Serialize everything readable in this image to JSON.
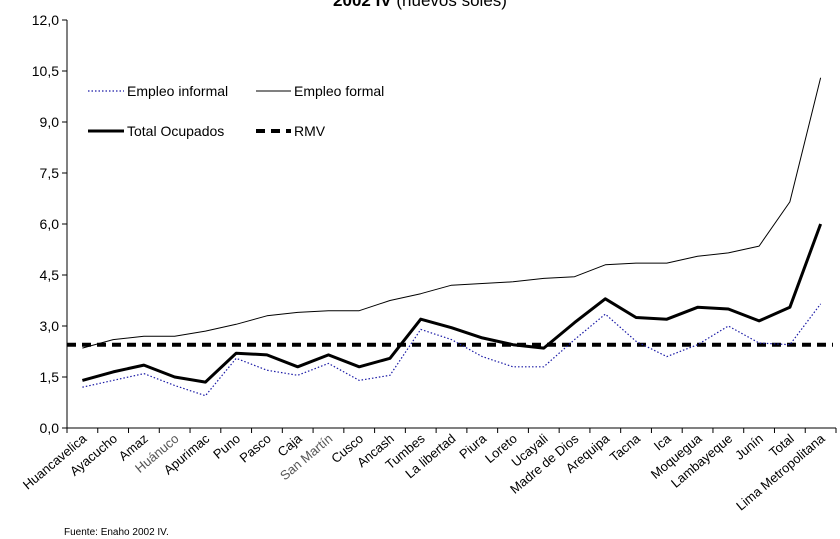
{
  "chart_data": {
    "type": "line",
    "title_bold": "2002 IV",
    "title_rest": "(nuevos soles)",
    "ylim": [
      0,
      12
    ],
    "yticks": [
      "0,0",
      "1,5",
      "3,0",
      "4,5",
      "6,0",
      "7,5",
      "9,0",
      "10,5",
      "12,0"
    ],
    "categories": [
      "Huancavelica",
      "Ayacucho",
      "Amazonas",
      "Huánuco",
      "Apurimac",
      "Puno",
      "Pasco",
      "Cajamarca",
      "San Martín",
      "Cusco",
      "Ancash",
      "Tumbes",
      "La libertad",
      "Piura",
      "Loreto",
      "Ucayali",
      "Madre de Dios",
      "Arequipa",
      "Tacna",
      "Ica",
      "Moquegua",
      "Lambayeque",
      "Junín",
      "Total",
      "Lima Metropolitana"
    ],
    "category_labels": [
      "Huancavelica",
      "Ayacucho",
      "Amaz",
      "Huánuco",
      "Apurimac",
      "Puno",
      "Pasco",
      "Caja",
      "San Martín",
      "Cusco",
      "Ancash",
      "Tumbes",
      "La libertad",
      "Piura",
      "Loreto",
      "Ucayali",
      "Madre de Dios",
      "Arequipa",
      "Tacna",
      "Ica",
      "Moquegua",
      "Lambayeque",
      "Junín",
      "Total",
      "Lima Metropolitana"
    ],
    "gray_labels": [
      "Huánuco",
      "San Martín"
    ],
    "series": [
      {
        "name": "Empleo informal",
        "style": "dotted",
        "color": "#1a1aa6",
        "values": [
          1.2,
          1.4,
          1.6,
          1.25,
          0.95,
          2.05,
          1.7,
          1.55,
          1.9,
          1.4,
          1.55,
          2.9,
          2.6,
          2.1,
          1.8,
          1.8,
          2.6,
          3.35,
          2.55,
          2.1,
          2.45,
          3.0,
          2.5,
          2.45,
          3.65
        ]
      },
      {
        "name": "Empleo formal",
        "style": "thin",
        "color": "#000000",
        "values": [
          2.35,
          2.6,
          2.7,
          2.7,
          2.85,
          3.05,
          3.3,
          3.4,
          3.45,
          3.45,
          3.75,
          3.95,
          4.2,
          4.25,
          4.3,
          4.4,
          4.45,
          4.8,
          4.85,
          4.85,
          5.05,
          5.15,
          5.35,
          6.65,
          10.3
        ]
      },
      {
        "name": "Total Ocupados",
        "style": "thick",
        "color": "#000000",
        "values": [
          1.4,
          1.65,
          1.85,
          1.5,
          1.35,
          2.2,
          2.15,
          1.8,
          2.15,
          1.8,
          2.05,
          3.2,
          2.95,
          2.65,
          2.45,
          2.35,
          3.1,
          3.8,
          3.25,
          3.2,
          3.55,
          3.5,
          3.15,
          3.55,
          6.0
        ]
      },
      {
        "name": "RMV",
        "style": "dashed",
        "color": "#000000",
        "values": [
          2.45,
          2.45,
          2.45,
          2.45,
          2.45,
          2.45,
          2.45,
          2.45,
          2.45,
          2.45,
          2.45,
          2.45,
          2.45,
          2.45,
          2.45,
          2.45,
          2.45,
          2.45,
          2.45,
          2.45,
          2.45,
          2.45,
          2.45,
          2.45,
          2.45
        ]
      }
    ],
    "legend_placement": "top-left",
    "source": "Fuente: Enaho 2002 IV."
  }
}
